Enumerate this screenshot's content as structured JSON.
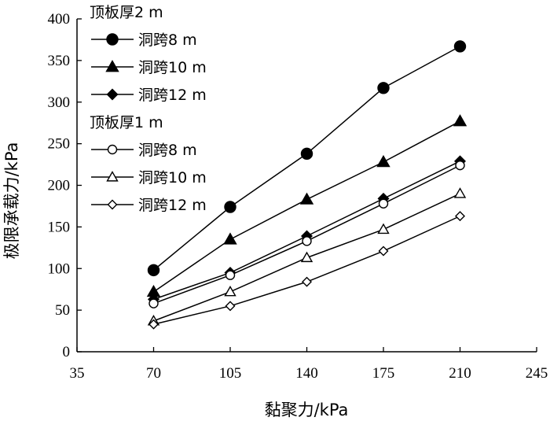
{
  "chart_data": {
    "type": "line",
    "xlabel": "黏聚力/kPa",
    "ylabel": "极限承载力/kPa",
    "xlim": [
      35,
      245
    ],
    "ylim": [
      0,
      400
    ],
    "xticks": [
      35,
      70,
      105,
      140,
      175,
      210,
      245
    ],
    "yticks": [
      0,
      50,
      100,
      150,
      200,
      250,
      300,
      350,
      400
    ],
    "grid": false,
    "legend_position": "top-left",
    "legend_groups": [
      {
        "title": "顶板厚2 m",
        "series_index": [
          0,
          1,
          2
        ]
      },
      {
        "title": "顶板厚1 m",
        "series_index": [
          3,
          4,
          5
        ]
      }
    ],
    "x": [
      70,
      105,
      140,
      175,
      210
    ],
    "series": [
      {
        "name": "洞跨8 m",
        "marker": "circle-filled",
        "values": [
          98,
          174,
          238,
          317,
          367
        ]
      },
      {
        "name": "洞跨10 m",
        "marker": "triangle-filled",
        "values": [
          72,
          135,
          183,
          228,
          277
        ]
      },
      {
        "name": "洞跨12 m",
        "marker": "diamond-filled",
        "values": [
          63,
          95,
          139,
          184,
          229
        ]
      },
      {
        "name": "洞跨8 m",
        "marker": "circle-open",
        "values": [
          58,
          92,
          133,
          178,
          224
        ]
      },
      {
        "name": "洞跨10 m",
        "marker": "triangle-open",
        "values": [
          37,
          72,
          113,
          147,
          190
        ]
      },
      {
        "name": "洞跨12 m",
        "marker": "diamond-open",
        "values": [
          33,
          55,
          84,
          121,
          163
        ]
      }
    ]
  }
}
